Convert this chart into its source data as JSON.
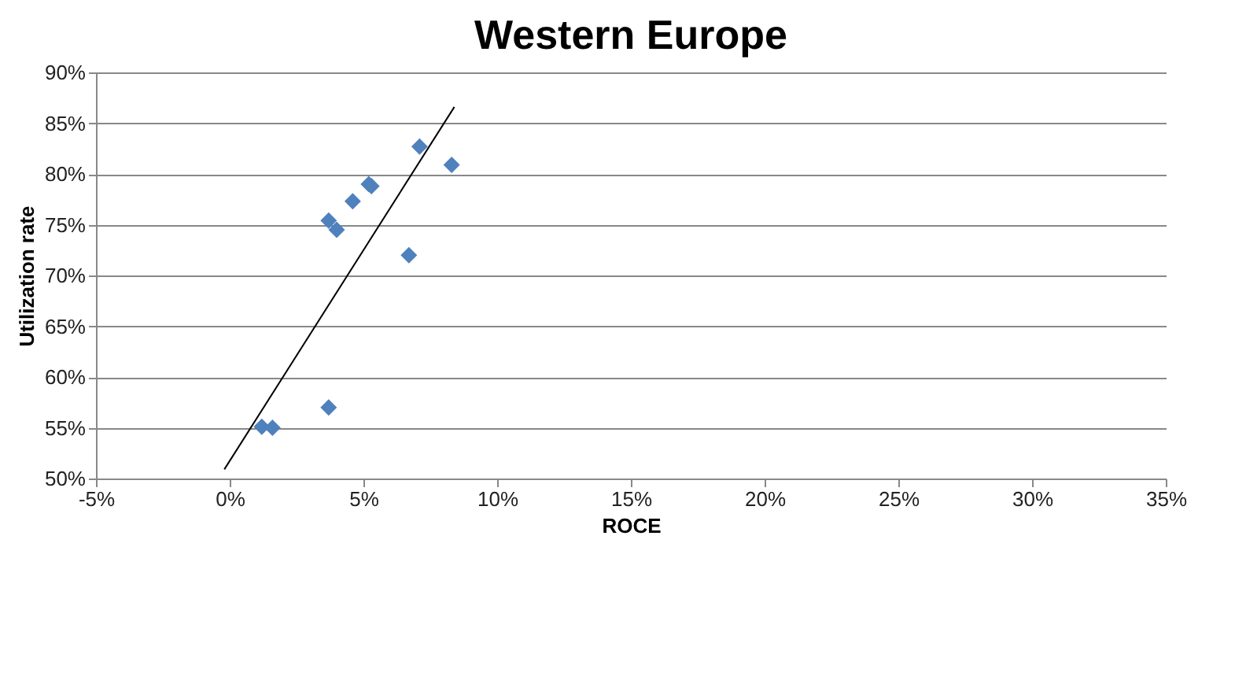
{
  "chart_data": {
    "type": "scatter",
    "title": "Western Europe",
    "xlabel": "ROCE",
    "ylabel": "Utilization rate",
    "marker": "diamond",
    "grid": "y",
    "series": [
      {
        "color": "#4f81bd",
        "x": [
          1.2,
          1.6,
          3.7,
          3.7,
          4.0,
          4.6,
          5.2,
          5.3,
          6.7,
          7.1,
          8.3
        ],
        "values": [
          55.1,
          55.0,
          57.0,
          75.4,
          74.5,
          77.3,
          79.0,
          78.8,
          72.0,
          82.7,
          80.9
        ]
      },
      {
        "type": "line",
        "marker": "none",
        "color": "#000000",
        "x": [
          -0.2,
          8.4
        ],
        "values": [
          50.9,
          86.6
        ]
      }
    ],
    "xlim": [
      -5,
      35
    ],
    "xticks": [
      {
        "value": -5,
        "label": "-5%"
      },
      {
        "value": 0,
        "label": "0%"
      },
      {
        "value": 5,
        "label": "5%"
      },
      {
        "value": 10,
        "label": "10%"
      },
      {
        "value": 15,
        "label": "15%"
      },
      {
        "value": 20,
        "label": "20%"
      },
      {
        "value": 25,
        "label": "25%"
      },
      {
        "value": 30,
        "label": "30%"
      },
      {
        "value": 35,
        "label": "35%"
      }
    ],
    "ylim": [
      50,
      90
    ],
    "yticks": [
      {
        "value": 50,
        "label": "50%"
      },
      {
        "value": 55,
        "label": "55%"
      },
      {
        "value": 60,
        "label": "60%"
      },
      {
        "value": 65,
        "label": "65%"
      },
      {
        "value": 70,
        "label": "70%"
      },
      {
        "value": 75,
        "label": "75%"
      },
      {
        "value": 80,
        "label": "80%"
      },
      {
        "value": 85,
        "label": "85%"
      },
      {
        "value": 90,
        "label": "90%"
      }
    ]
  }
}
